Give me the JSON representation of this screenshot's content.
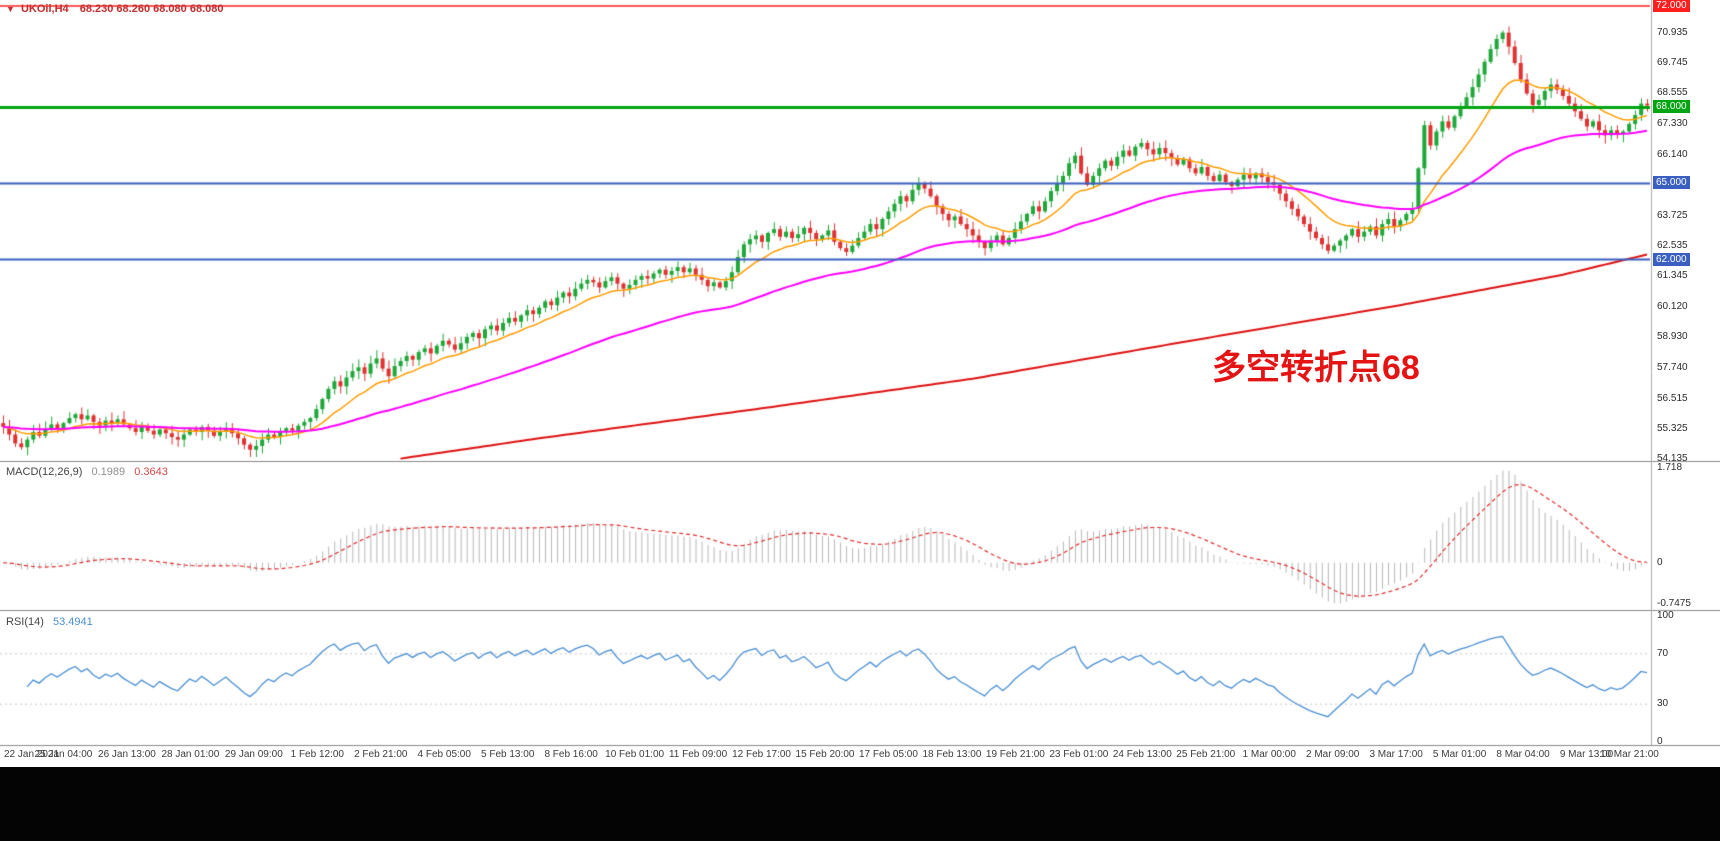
{
  "quote_bar": {
    "arrow": "▼",
    "symbol": "UKOil,H4",
    "ohlc": "68.230 68.260 68.080 68.080"
  },
  "annotation": {
    "text": "多空转折点68",
    "color": "#e41414"
  },
  "main_chart": {
    "price_max": 72.0,
    "price_min": 54.135,
    "price_ticks": [
      70.935,
      69.745,
      68.555,
      67.33,
      66.14,
      63.725,
      62.535,
      61.345,
      60.12,
      58.93,
      57.74,
      56.515,
      55.325,
      54.135
    ],
    "hlines": [
      {
        "price": 72.0,
        "label": "72.000",
        "color": "#ff1e1e",
        "width": 1.5
      },
      {
        "price": 68.0,
        "label": "68.000",
        "color": "#00a410",
        "width": 3
      },
      {
        "price": 65.0,
        "label": "65.000",
        "color": "#3a5fc0",
        "width": 2
      },
      {
        "price": 62.0,
        "label": "62.000",
        "color": "#3a5fc0",
        "width": 2
      }
    ]
  },
  "macd_panel": {
    "label": "MACD(12,26,9)",
    "value_main": "0.1989",
    "value_signal": "0.3643",
    "scale_max": 1.718,
    "scale_min": -0.7475,
    "scale_ticks": [
      {
        "v": 1.718,
        "label": "1.718"
      },
      {
        "v": 0,
        "label": "0"
      },
      {
        "v": -0.7475,
        "label": "-0.7475"
      }
    ],
    "histogram_color": "#b8b8b8",
    "signal_color": "#e03030"
  },
  "rsi_panel": {
    "label": "RSI(14)",
    "value": "53.4941",
    "line_color": "#4a8fd4",
    "level_ticks": [
      {
        "v": 100,
        "label": "100"
      },
      {
        "v": 70,
        "label": "70"
      },
      {
        "v": 30,
        "label": "30"
      },
      {
        "v": 0,
        "label": "0"
      }
    ],
    "dotted_levels": [
      70,
      30
    ]
  },
  "time_axis": {
    "labels": [
      "22 Jan 2021",
      "25 Jan 04:00",
      "26 Jan 13:00",
      "28 Jan 01:00",
      "29 Jan 09:00",
      "1 Feb 12:00",
      "2 Feb 21:00",
      "4 Feb 05:00",
      "5 Feb 13:00",
      "8 Feb 16:00",
      "10 Feb 01:00",
      "11 Feb 09:00",
      "12 Feb 17:00",
      "15 Feb 20:00",
      "17 Feb 05:00",
      "18 Feb 13:00",
      "19 Feb 21:00",
      "23 Feb 01:00",
      "24 Feb 13:00",
      "25 Feb 21:00",
      "1 Mar 00:00",
      "2 Mar 09:00",
      "3 Mar 17:00",
      "5 Mar 01:00",
      "8 Mar 04:00",
      "9 Mar 13:00",
      "10 Mar 21:00"
    ]
  },
  "chart_data": {
    "type": "candlestick",
    "symbol": "UKOil",
    "timeframe": "H4",
    "up_color": "#1fa839",
    "down_color": "#e03232",
    "levels": [
      72.0,
      68.0,
      65.0,
      62.0
    ],
    "closes": [
      55.4,
      55.1,
      54.75,
      54.6,
      54.9,
      55.2,
      55.05,
      55.3,
      55.5,
      55.35,
      55.55,
      55.75,
      55.9,
      55.7,
      55.85,
      55.6,
      55.45,
      55.65,
      55.55,
      55.7,
      55.5,
      55.35,
      55.2,
      55.4,
      55.25,
      55.1,
      55.3,
      55.15,
      55.0,
      54.9,
      55.1,
      55.3,
      55.2,
      55.4,
      55.25,
      55.05,
      55.2,
      55.35,
      55.15,
      54.95,
      54.7,
      54.5,
      54.65,
      54.9,
      55.1,
      55.0,
      55.2,
      55.35,
      55.25,
      55.45,
      55.6,
      55.75,
      56.1,
      56.5,
      56.9,
      57.2,
      57.0,
      57.35,
      57.6,
      57.75,
      57.5,
      57.9,
      58.1,
      57.7,
      57.4,
      57.8,
      58.0,
      58.2,
      58.05,
      58.35,
      58.5,
      58.3,
      58.6,
      58.8,
      58.65,
      58.45,
      58.7,
      58.95,
      59.1,
      58.9,
      59.25,
      59.4,
      59.2,
      59.5,
      59.7,
      59.55,
      59.8,
      60.0,
      59.85,
      60.1,
      60.35,
      60.2,
      60.5,
      60.7,
      60.55,
      60.85,
      61.05,
      61.2,
      61.1,
      60.9,
      61.15,
      61.3,
      61.05,
      60.85,
      61.0,
      61.2,
      61.35,
      61.25,
      61.45,
      61.6,
      61.4,
      61.55,
      61.7,
      61.5,
      61.65,
      61.4,
      61.2,
      60.95,
      61.1,
      60.9,
      61.15,
      61.5,
      62.1,
      62.6,
      62.8,
      62.95,
      62.7,
      63.05,
      63.2,
      62.9,
      63.1,
      62.85,
      63.0,
      63.25,
      63.05,
      62.8,
      62.95,
      63.15,
      62.7,
      62.45,
      62.3,
      62.55,
      62.85,
      63.1,
      63.4,
      63.2,
      63.6,
      63.9,
      64.2,
      64.5,
      64.3,
      64.75,
      65.0,
      64.8,
      64.5,
      64.1,
      63.8,
      63.55,
      63.7,
      63.4,
      63.2,
      62.95,
      62.7,
      62.45,
      62.75,
      62.95,
      62.6,
      62.85,
      63.2,
      63.5,
      63.8,
      64.1,
      63.9,
      64.3,
      64.7,
      65.0,
      65.3,
      65.8,
      66.1,
      65.4,
      64.95,
      65.3,
      65.6,
      65.9,
      65.7,
      66.05,
      66.3,
      66.1,
      66.45,
      66.6,
      66.35,
      66.15,
      66.4,
      66.2,
      66.0,
      65.75,
      65.95,
      65.6,
      65.4,
      65.65,
      65.3,
      65.1,
      65.35,
      65.05,
      64.9,
      65.15,
      65.35,
      65.2,
      65.4,
      65.25,
      65.05,
      64.95,
      64.6,
      64.3,
      64.0,
      63.7,
      63.4,
      63.1,
      62.85,
      62.6,
      62.35,
      62.55,
      62.75,
      62.95,
      63.2,
      62.9,
      63.1,
      63.3,
      62.95,
      63.4,
      63.6,
      63.3,
      63.55,
      63.8,
      64.0,
      65.6,
      67.3,
      66.5,
      67.05,
      67.45,
      67.2,
      67.65,
      68.05,
      68.4,
      68.8,
      69.3,
      69.8,
      70.3,
      70.7,
      70.95,
      70.4,
      69.75,
      69.1,
      68.55,
      68.1,
      68.3,
      68.65,
      68.9,
      68.7,
      68.45,
      68.15,
      67.85,
      67.55,
      67.25,
      67.45,
      67.1,
      66.9,
      67.1,
      66.95,
      67.05,
      67.35,
      67.7,
      68.15,
      68.08
    ],
    "ma_fast": {
      "color": "#ff9c00",
      "period": 13
    },
    "ma_mid": {
      "color": "#ff00ff",
      "period": 55
    },
    "ma_slow": {
      "color": "#dd1111",
      "anchors": [
        [
          66,
          54.15
        ],
        [
          89,
          54.95
        ],
        [
          125,
          56.1
        ],
        [
          161,
          57.3
        ],
        [
          196,
          58.75
        ],
        [
          232,
          60.2
        ],
        [
          259,
          61.4
        ],
        [
          273,
          62.2
        ]
      ]
    }
  }
}
